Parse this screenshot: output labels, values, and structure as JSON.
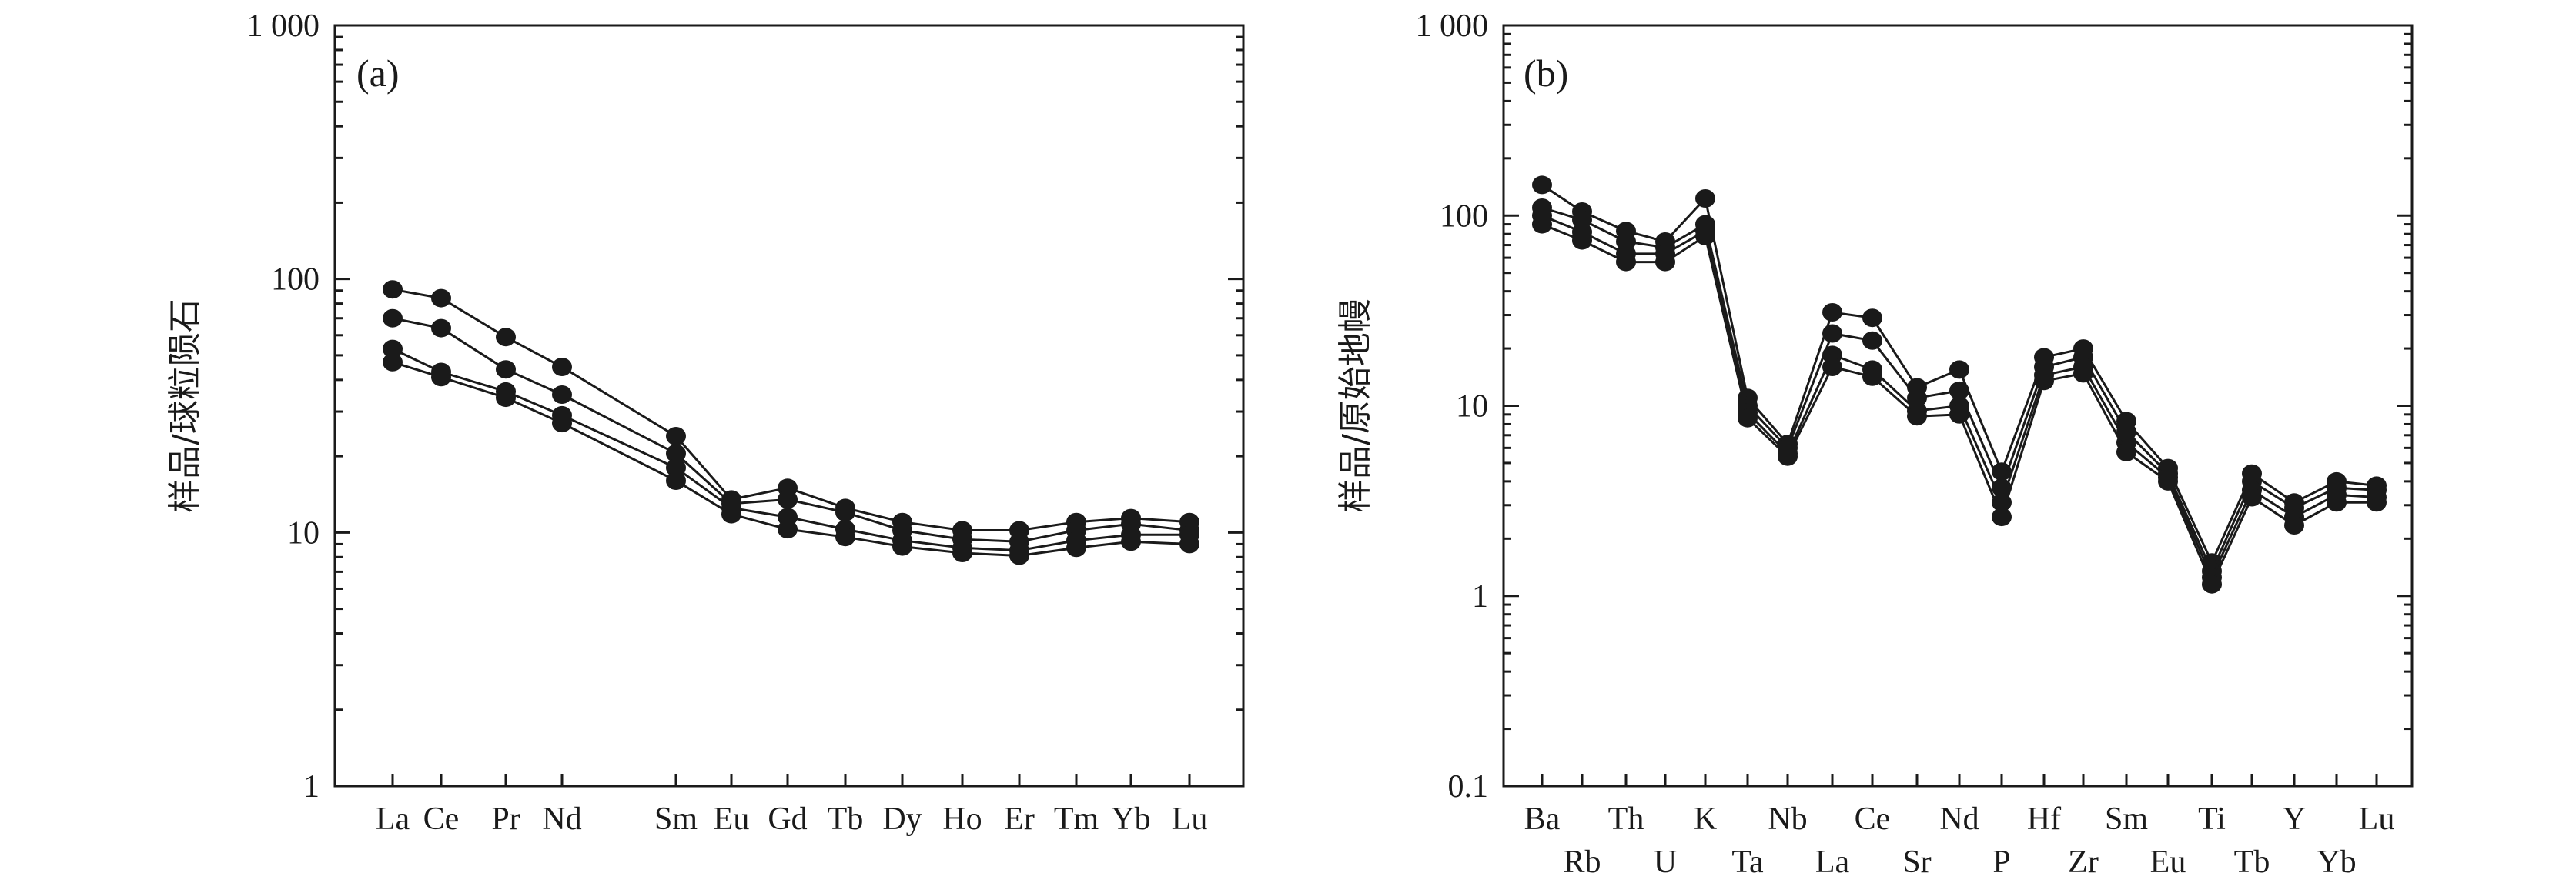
{
  "chart_data": [
    {
      "type": "line",
      "panel_label": "(a)",
      "ylabel": "样品/球粒陨石",
      "yscale": "log",
      "ylim": [
        1,
        1000
      ],
      "yticks": [
        1,
        10,
        100,
        1000
      ],
      "ytick_labels": [
        "1",
        "10",
        "100",
        "1 000"
      ],
      "categories": [
        "La",
        "Ce",
        "Pr",
        "Nd",
        "Sm",
        "Eu",
        "Gd",
        "Tb",
        "Dy",
        "Ho",
        "Er",
        "Tm",
        "Yb",
        "Lu"
      ],
      "series": [
        {
          "values": [
            91,
            84,
            59,
            45,
            24,
            13.5,
            15,
            12.5,
            11,
            10.2,
            10.2,
            11,
            11.4,
            11
          ]
        },
        {
          "values": [
            70,
            64,
            44,
            35,
            20.5,
            13,
            13.5,
            12,
            10.2,
            9.4,
            9.2,
            10.2,
            10.8,
            10.2
          ]
        },
        {
          "values": [
            53,
            43,
            36,
            29,
            18,
            12.5,
            11.5,
            10.3,
            9.3,
            8.7,
            8.5,
            9.3,
            9.8,
            9.8
          ]
        },
        {
          "values": [
            47,
            41,
            34,
            27,
            16,
            11.8,
            10.3,
            9.6,
            8.8,
            8.3,
            8.1,
            8.7,
            9.2,
            9.0
          ]
        }
      ]
    },
    {
      "type": "line",
      "panel_label": "(b)",
      "ylabel": "样品/原始地幔",
      "yscale": "log",
      "ylim": [
        0.1,
        1000
      ],
      "yticks": [
        0.1,
        1,
        10,
        100,
        1000
      ],
      "ytick_labels": [
        "0.1",
        "1",
        "10",
        "100",
        "1 000"
      ],
      "categories": [
        "Ba",
        "Rb",
        "Th",
        "U",
        "K",
        "Ta",
        "Nb",
        "La",
        "Ce",
        "Sr",
        "Nd",
        "P",
        "Hf",
        "Zr",
        "Sm",
        "Eu",
        "Ti",
        "Tb",
        "Y",
        "Yb",
        "Lu"
      ],
      "series": [
        {
          "values": [
            145,
            105,
            83,
            73,
            123,
            11,
            6.3,
            31,
            29,
            12.5,
            15.5,
            4.5,
            18,
            20,
            8.3,
            4.7,
            1.5,
            4.4,
            3.1,
            4.0,
            3.8
          ]
        },
        {
          "values": [
            110,
            95,
            73,
            68,
            90,
            10,
            6.0,
            24,
            22,
            11,
            12,
            3.7,
            16,
            18,
            7.3,
            4.4,
            1.35,
            4.0,
            2.9,
            3.7,
            3.6
          ]
        },
        {
          "values": [
            100,
            82,
            63,
            63,
            83,
            9.2,
            5.6,
            18.5,
            15.5,
            9.4,
            10,
            3.1,
            14.5,
            16,
            6.4,
            4.2,
            1.25,
            3.6,
            2.6,
            3.4,
            3.3
          ]
        },
        {
          "values": [
            90,
            74,
            57,
            57,
            78,
            8.6,
            5.4,
            16,
            14.2,
            8.8,
            9.0,
            2.6,
            13.5,
            14.8,
            5.7,
            4.0,
            1.15,
            3.3,
            2.35,
            3.1,
            3.1
          ]
        }
      ]
    }
  ]
}
